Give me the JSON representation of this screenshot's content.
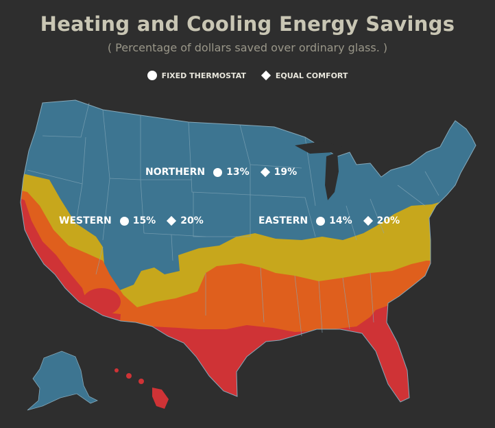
{
  "title": "Heating and Cooling Energy Savings",
  "subtitle": "( Percentage of dollars saved over ordinary glass. )",
  "legend": {
    "fixed_thermostat": "FIXED THERMOSTAT",
    "equal_comfort": "EQUAL COMFORT"
  },
  "regions": {
    "northern": {
      "name": "NORTHERN",
      "fixed": "13%",
      "equal": "19%"
    },
    "western": {
      "name": "WESTERN",
      "fixed": "15%",
      "equal": "20%"
    },
    "eastern": {
      "name": "EASTERN",
      "fixed": "14%",
      "equal": "20%"
    }
  },
  "colors": {
    "background": "#2e2e2e",
    "title": "#c9c6b4",
    "subtitle": "#9a9789",
    "northern_zone": "#3d7591",
    "north_central_zone": "#c7a71c",
    "south_central_zone": "#df5f1d",
    "southern_zone": "#cf3336",
    "borders": "#86a9ba",
    "label": "#ffffff"
  }
}
